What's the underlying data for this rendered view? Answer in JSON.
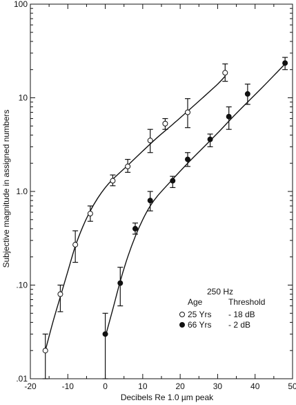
{
  "chart_data": {
    "type": "scatter",
    "title": "",
    "xlabel": "Decibels Re 1.0 µm peak",
    "ylabel": "Subjective magnitude in assigned numbers",
    "xlim": [
      -20,
      50
    ],
    "ylim": [
      0.01,
      100
    ],
    "yscale": "log",
    "grid": false,
    "legend_position": "bottom-right",
    "xticks": [
      -20,
      -10,
      0,
      10,
      20,
      30,
      40,
      50
    ],
    "xtick_labels": [
      "-20",
      "-10",
      "0",
      "10",
      "20",
      "30",
      "40",
      "50"
    ],
    "yticks": [
      0.01,
      0.1,
      1,
      10,
      100
    ],
    "ytick_labels": [
      ".01",
      ".10",
      "1.0",
      "10",
      "100"
    ],
    "legend": {
      "title": "250 Hz",
      "col1_header": "Age",
      "col2_header": "Threshold",
      "entries": [
        {
          "marker": "open-circle",
          "age": "25 Yrs",
          "threshold": "- 18 dB"
        },
        {
          "marker": "filled-circle",
          "age": "66 Yrs",
          "threshold": "- 2 dB"
        }
      ]
    },
    "series": [
      {
        "marker": "open-circle",
        "points": [
          {
            "x": -16,
            "y": 0.02,
            "lo": 0.01,
            "hi": 0.03
          },
          {
            "x": -12,
            "y": 0.08,
            "lo": 0.052,
            "hi": 0.1
          },
          {
            "x": -8,
            "y": 0.27,
            "lo": 0.175,
            "hi": 0.38
          },
          {
            "x": -4,
            "y": 0.58,
            "lo": 0.48,
            "hi": 0.7
          },
          {
            "x": 2,
            "y": 1.3,
            "lo": 1.15,
            "hi": 1.5
          },
          {
            "x": 6,
            "y": 1.85,
            "lo": 1.6,
            "hi": 2.2
          },
          {
            "x": 12,
            "y": 3.5,
            "lo": 2.6,
            "hi": 4.6
          },
          {
            "x": 16,
            "y": 5.3,
            "lo": 4.6,
            "hi": 6.0
          },
          {
            "x": 22,
            "y": 7.0,
            "lo": 4.8,
            "hi": 9.8
          },
          {
            "x": 32,
            "y": 18.5,
            "lo": 15.0,
            "hi": 23.0
          }
        ],
        "fit_curve": [
          {
            "x": -16,
            "y": 0.02
          },
          {
            "x": -14,
            "y": 0.04
          },
          {
            "x": -12,
            "y": 0.075
          },
          {
            "x": -10,
            "y": 0.14
          },
          {
            "x": -8,
            "y": 0.26
          },
          {
            "x": -6,
            "y": 0.42
          },
          {
            "x": -4,
            "y": 0.62
          },
          {
            "x": -2,
            "y": 0.85
          },
          {
            "x": 0,
            "y": 1.1
          },
          {
            "x": 2,
            "y": 1.35
          },
          {
            "x": 6,
            "y": 1.9
          },
          {
            "x": 10,
            "y": 2.7
          },
          {
            "x": 14,
            "y": 3.8
          },
          {
            "x": 18,
            "y": 5.2
          },
          {
            "x": 22,
            "y": 7.2
          },
          {
            "x": 26,
            "y": 10.0
          },
          {
            "x": 30,
            "y": 14.0
          },
          {
            "x": 32,
            "y": 17.0
          }
        ]
      },
      {
        "marker": "filled-circle",
        "points": [
          {
            "x": 0,
            "y": 0.03,
            "lo": 0.01,
            "hi": 0.05
          },
          {
            "x": 4,
            "y": 0.105,
            "lo": 0.06,
            "hi": 0.155
          },
          {
            "x": 8,
            "y": 0.4,
            "lo": 0.35,
            "hi": 0.46
          },
          {
            "x": 12,
            "y": 0.8,
            "lo": 0.62,
            "hi": 1.0
          },
          {
            "x": 18,
            "y": 1.3,
            "lo": 1.1,
            "hi": 1.45
          },
          {
            "x": 22,
            "y": 2.2,
            "lo": 1.85,
            "hi": 2.6
          },
          {
            "x": 28,
            "y": 3.6,
            "lo": 3.0,
            "hi": 4.1
          },
          {
            "x": 33,
            "y": 6.3,
            "lo": 4.6,
            "hi": 8.0
          },
          {
            "x": 38,
            "y": 11.0,
            "lo": 8.5,
            "hi": 14.0
          },
          {
            "x": 48,
            "y": 23.5,
            "lo": 20.0,
            "hi": 27.0
          }
        ],
        "fit_curve": [
          {
            "x": 0,
            "y": 0.028
          },
          {
            "x": 2,
            "y": 0.055
          },
          {
            "x": 4,
            "y": 0.11
          },
          {
            "x": 6,
            "y": 0.2
          },
          {
            "x": 8,
            "y": 0.33
          },
          {
            "x": 10,
            "y": 0.5
          },
          {
            "x": 12,
            "y": 0.7
          },
          {
            "x": 14,
            "y": 0.9
          },
          {
            "x": 18,
            "y": 1.35
          },
          {
            "x": 22,
            "y": 2.0
          },
          {
            "x": 26,
            "y": 2.9
          },
          {
            "x": 30,
            "y": 4.2
          },
          {
            "x": 34,
            "y": 6.2
          },
          {
            "x": 38,
            "y": 9.0
          },
          {
            "x": 42,
            "y": 13.0
          },
          {
            "x": 46,
            "y": 19.0
          },
          {
            "x": 48,
            "y": 23.0
          }
        ]
      }
    ]
  }
}
